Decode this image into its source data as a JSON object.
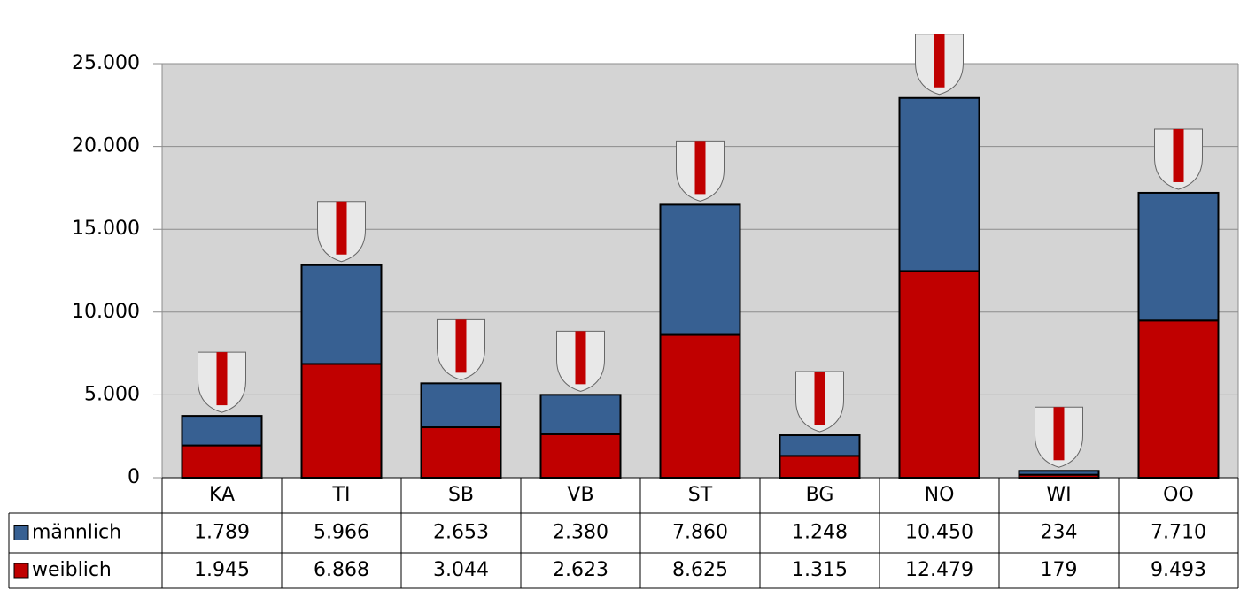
{
  "chart_data": {
    "type": "stacked_bar",
    "categories": [
      "KA",
      "TI",
      "SB",
      "VB",
      "ST",
      "BG",
      "NO",
      "WI",
      "OO"
    ],
    "series": [
      {
        "name": "männlich",
        "color": "#376092",
        "values": [
          1789,
          5966,
          2653,
          2380,
          7860,
          1248,
          10450,
          234,
          7710
        ],
        "value_labels": [
          "1.789",
          "5.966",
          "2.653",
          "2.380",
          "7.860",
          "1.248",
          "10.450",
          "234",
          "7.710"
        ]
      },
      {
        "name": "weiblich",
        "color": "#c00000",
        "values": [
          1945,
          6868,
          3044,
          2623,
          8625,
          1315,
          12479,
          179,
          9493
        ],
        "value_labels": [
          "1.945",
          "6.868",
          "3.044",
          "2.623",
          "8.625",
          "1.315",
          "12.479",
          "179",
          "9.493"
        ]
      }
    ],
    "ylim": [
      0,
      25000
    ],
    "yticks": [
      0,
      {
        "value": 5000,
        "label": "5.000"
      },
      {
        "value": 10000,
        "label": "10.000"
      },
      {
        "value": 15000,
        "label": "15.000"
      },
      {
        "value": 20000,
        "label": "20.000"
      },
      {
        "value": 25000,
        "label": "25.000"
      }
    ],
    "grid": true
  }
}
